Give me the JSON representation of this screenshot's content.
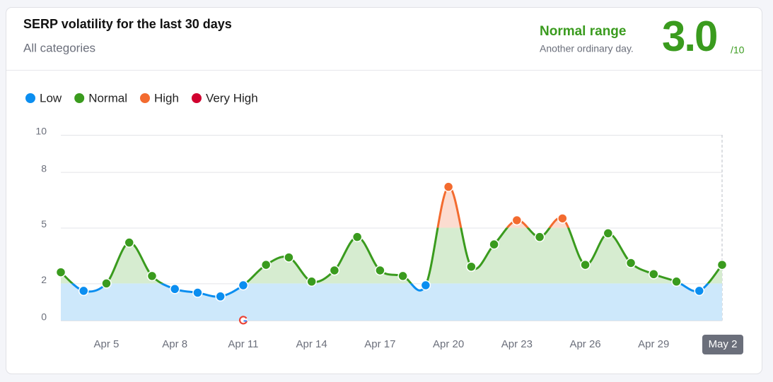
{
  "header": {
    "title": "SERP volatility for the last 30 days",
    "subtitle": "All categories",
    "status": "Normal range",
    "status_note": "Another ordinary day.",
    "score": "3.0",
    "score_max": "/10"
  },
  "chart_data": {
    "type": "line",
    "legend": [
      {
        "name": "Low",
        "color": "#0b8ef0"
      },
      {
        "name": "Normal",
        "color": "#3a9b1e"
      },
      {
        "name": "High",
        "color": "#f36b2f"
      },
      {
        "name": "Very High",
        "color": "#d1002f"
      }
    ],
    "categories": [
      null,
      null,
      "Apr 5",
      null,
      null,
      "Apr 8",
      null,
      null,
      "Apr 11",
      null,
      null,
      "Apr 14",
      null,
      null,
      "Apr 17",
      null,
      null,
      "Apr 20",
      null,
      null,
      "Apr 23",
      null,
      null,
      "Apr 26",
      null,
      null,
      "Apr 29",
      null,
      null,
      "May 2"
    ],
    "values": [
      2.6,
      1.6,
      2.0,
      4.2,
      2.4,
      1.7,
      1.5,
      1.3,
      1.9,
      3.0,
      3.4,
      2.1,
      2.7,
      4.5,
      2.7,
      2.4,
      1.9,
      7.2,
      2.9,
      4.1,
      5.4,
      4.5,
      5.5,
      3.0,
      4.7,
      3.1,
      2.5,
      2.1,
      1.6,
      3.0
    ],
    "colors": [
      "#3a9b1e",
      "#0b8ef0",
      "#3a9b1e",
      "#3a9b1e",
      "#3a9b1e",
      "#0b8ef0",
      "#0b8ef0",
      "#0b8ef0",
      "#0b8ef0",
      "#3a9b1e",
      "#3a9b1e",
      "#3a9b1e",
      "#3a9b1e",
      "#3a9b1e",
      "#3a9b1e",
      "#3a9b1e",
      "#0b8ef0",
      "#f36b2f",
      "#3a9b1e",
      "#3a9b1e",
      "#f36b2f",
      "#3a9b1e",
      "#f36b2f",
      "#3a9b1e",
      "#3a9b1e",
      "#3a9b1e",
      "#3a9b1e",
      "#3a9b1e",
      "#0b8ef0",
      "#3a9b1e"
    ],
    "ylim": [
      0,
      10
    ],
    "yticks": [
      0,
      2,
      5,
      8,
      10
    ],
    "grid": true
  }
}
